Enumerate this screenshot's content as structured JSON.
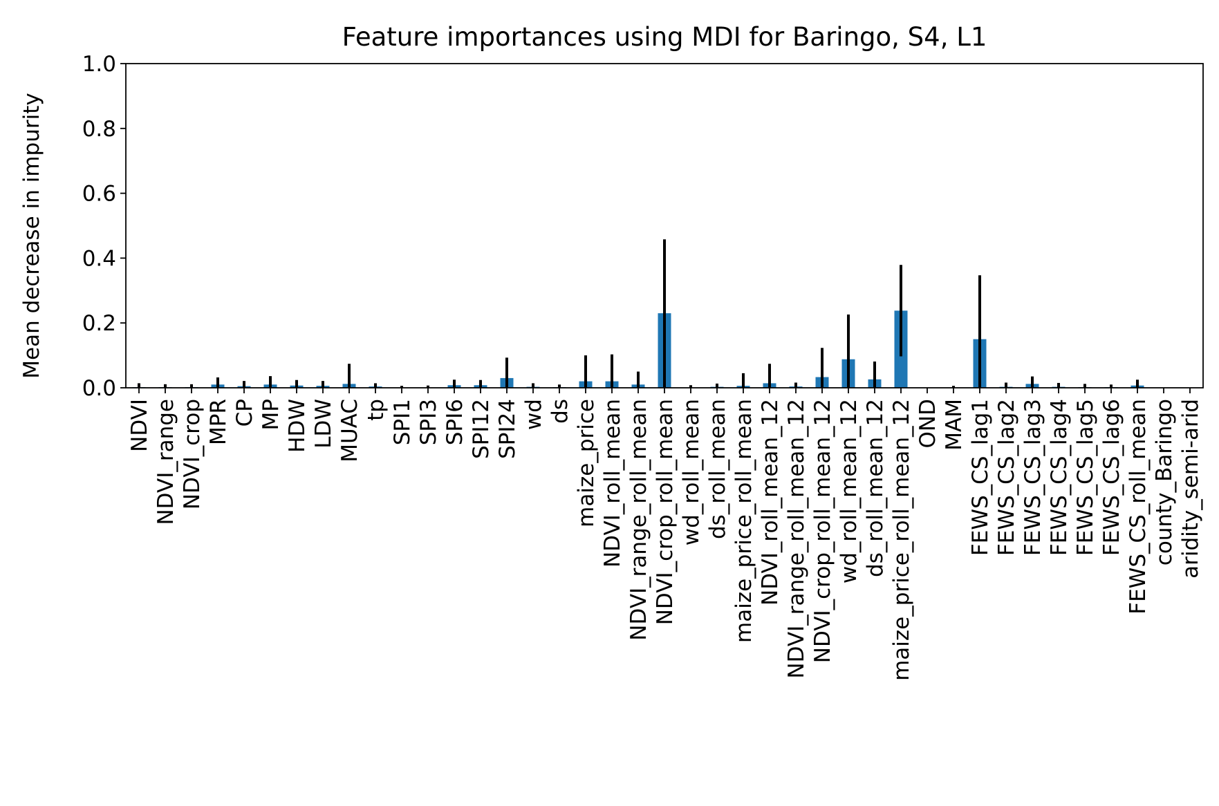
{
  "chart_data": {
    "type": "bar",
    "title": "Feature importances using MDI for Baringo, S4, L1",
    "xlabel": "",
    "ylabel": "Mean decrease in impurity",
    "ylim": [
      0,
      1.0
    ],
    "yticks": [
      "0.0",
      "0.2",
      "0.4",
      "0.6",
      "0.8",
      "1.0"
    ],
    "grid": false,
    "bar_color": "#1f77b4",
    "error_color": "#000000",
    "categories": [
      "NDVI",
      "NDVI_range",
      "NDVI_crop",
      "MPR",
      "CP",
      "MP",
      "HDW",
      "LDW",
      "MUAC",
      "tp",
      "SPI1",
      "SPI3",
      "SPI6",
      "SPI12",
      "SPI24",
      "wd",
      "ds",
      "maize_price",
      "NDVI_roll_mean",
      "NDVI_range_roll_mean",
      "NDVI_crop_roll_mean",
      "wd_roll_mean",
      "ds_roll_mean",
      "maize_price_roll_mean",
      "NDVI_roll_mean_12",
      "NDVI_range_roll_mean_12",
      "NDVI_crop_roll_mean_12",
      "wd_roll_mean_12",
      "ds_roll_mean_12",
      "maize_price_roll_mean_12",
      "OND",
      "MAM",
      "FEWS_CS_lag1",
      "FEWS_CS_lag2",
      "FEWS_CS_lag3",
      "FEWS_CS_lag4",
      "FEWS_CS_lag5",
      "FEWS_CS_lag6",
      "FEWS_CS_roll_mean",
      "county_Baringo",
      "aridity_semi-arid"
    ],
    "values": [
      0.002,
      0.002,
      0.002,
      0.01,
      0.005,
      0.01,
      0.007,
      0.006,
      0.012,
      0.004,
      0.001,
      0.001,
      0.008,
      0.008,
      0.03,
      0.003,
      0.002,
      0.02,
      0.02,
      0.01,
      0.23,
      0.001,
      0.003,
      0.006,
      0.014,
      0.004,
      0.033,
      0.088,
      0.026,
      0.238,
      0.0,
      0.001,
      0.15,
      0.003,
      0.012,
      0.003,
      0.002,
      0.002,
      0.007,
      0.0,
      0.0
    ],
    "errors": [
      0.012,
      0.009,
      0.009,
      0.022,
      0.016,
      0.026,
      0.017,
      0.015,
      0.062,
      0.01,
      0.005,
      0.006,
      0.017,
      0.016,
      0.063,
      0.011,
      0.008,
      0.08,
      0.083,
      0.04,
      0.228,
      0.007,
      0.01,
      0.039,
      0.06,
      0.012,
      0.09,
      0.138,
      0.055,
      0.141,
      0.0,
      0.005,
      0.197,
      0.013,
      0.023,
      0.012,
      0.01,
      0.008,
      0.018,
      0.0,
      0.0
    ]
  }
}
